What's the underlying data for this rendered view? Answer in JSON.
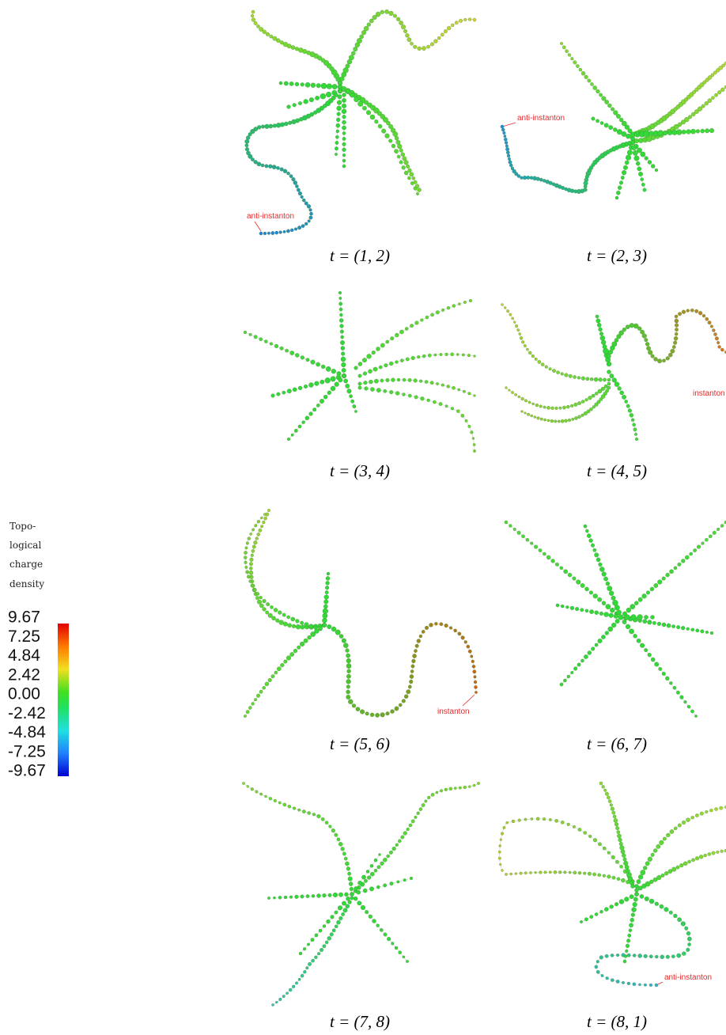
{
  "colorbar": {
    "title": [
      "Topo-",
      "logical",
      "charge",
      "density"
    ],
    "ticks": [
      9.67,
      7.25,
      4.84,
      2.42,
      {
        "value": 0,
        "label": "0.00"
      },
      -2.42,
      -4.84,
      -7.25,
      -9.67
    ]
  },
  "panels": [
    {
      "caption": "t = (1, 2)",
      "annotation": "anti-instanton"
    },
    {
      "caption": "t = (2, 3)",
      "annotation": "anti-instanton"
    },
    {
      "caption": "t = (3, 4)"
    },
    {
      "caption": "t = (4, 5)",
      "annotation": "instanton"
    },
    {
      "caption": "t = (5, 6)",
      "annotation": "instanton"
    },
    {
      "caption": "t = (6, 7)"
    },
    {
      "caption": "t = (7, 8)"
    },
    {
      "caption": "t = (8, 1)",
      "annotation": "anti-instanton"
    }
  ]
}
